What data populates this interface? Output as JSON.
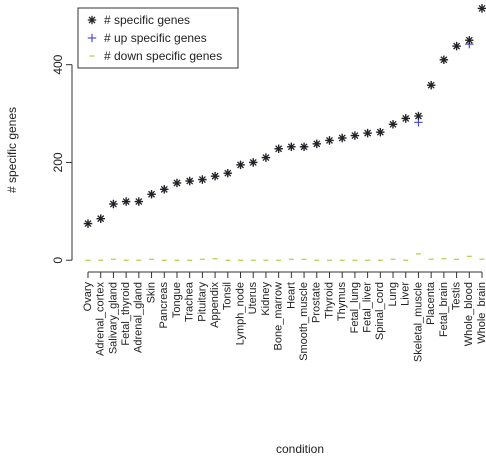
{
  "chart_data": {
    "type": "scatter",
    "xlabel": "condition",
    "ylabel": "# specific genes",
    "ylim": [
      -20,
      520
    ],
    "yticks": [
      0,
      200,
      400
    ],
    "grid": false,
    "legend_position": "top-left",
    "categories": [
      "Ovary",
      "Adrenal_cortex",
      "Salivary_gland",
      "Fetal_thyroid",
      "Adrenal_gland",
      "Skin",
      "Pancreas",
      "Tongue",
      "Trachea",
      "Pituitary",
      "Appendix",
      "Tonsil",
      "Lymph_node",
      "Uterus",
      "Kidney",
      "Bone_marrow",
      "Heart",
      "Smooth_muscle",
      "Prostate",
      "Thyroid",
      "Thymus",
      "Fetal_lung",
      "Fetal_liver",
      "Spinal_cord",
      "Lung",
      "Liver",
      "Skeletal_muscle",
      "Placenta",
      "Fetal_brain",
      "Testis",
      "Whole_blood",
      "Whole_brain"
    ],
    "series": [
      {
        "name": "# specific genes",
        "marker": "asterisk",
        "color": "#222222",
        "values": [
          75,
          85,
          115,
          120,
          120,
          135,
          145,
          158,
          162,
          165,
          172,
          178,
          195,
          200,
          210,
          228,
          232,
          232,
          238,
          245,
          250,
          255,
          260,
          262,
          278,
          290,
          295,
          358,
          410,
          438,
          450,
          515
        ]
      },
      {
        "name": "# up specific genes",
        "marker": "plus",
        "color": "#4a4fd0",
        "values": [
          75,
          85,
          115,
          120,
          120,
          135,
          145,
          158,
          162,
          165,
          172,
          178,
          195,
          200,
          210,
          228,
          232,
          232,
          238,
          245,
          250,
          255,
          260,
          262,
          278,
          290,
          282,
          358,
          410,
          438,
          442,
          515
        ]
      },
      {
        "name": "# down specific genes",
        "marker": "dash",
        "color": "#b8c94a",
        "values": [
          0,
          0,
          2,
          0,
          0,
          2,
          0,
          0,
          0,
          2,
          3,
          0,
          0,
          0,
          0,
          0,
          2,
          2,
          0,
          0,
          0,
          0,
          0,
          0,
          2,
          0,
          13,
          2,
          3,
          2,
          8,
          2
        ]
      }
    ]
  }
}
